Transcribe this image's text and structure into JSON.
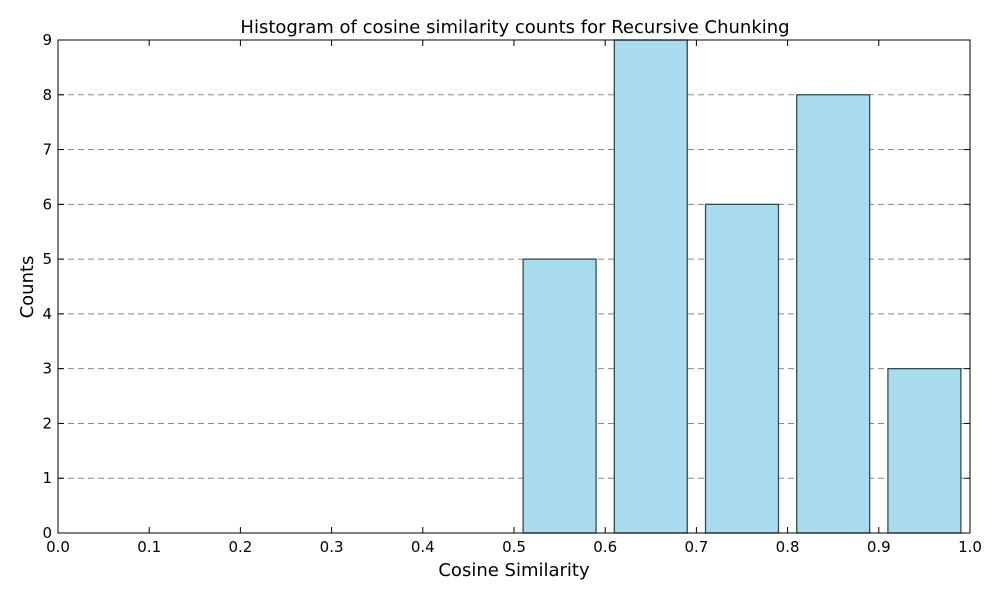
{
  "chart_data": {
    "type": "bar",
    "title": "Histogram of cosine similarity counts for Recursive Chunking",
    "xlabel": "Cosine Similarity",
    "ylabel": "Counts",
    "xlim": [
      0.0,
      1.0
    ],
    "ylim": [
      0,
      9
    ],
    "xticks": [
      "0.0",
      "0.1",
      "0.2",
      "0.3",
      "0.4",
      "0.5",
      "0.6",
      "0.7",
      "0.8",
      "0.9",
      "1.0"
    ],
    "yticks": [
      "0",
      "1",
      "2",
      "3",
      "4",
      "5",
      "6",
      "7",
      "8",
      "9"
    ],
    "bins": [
      {
        "start": 0.0,
        "end": 0.1,
        "count": 0
      },
      {
        "start": 0.1,
        "end": 0.2,
        "count": 0
      },
      {
        "start": 0.2,
        "end": 0.3,
        "count": 0
      },
      {
        "start": 0.3,
        "end": 0.4,
        "count": 0
      },
      {
        "start": 0.4,
        "end": 0.5,
        "count": 0
      },
      {
        "start": 0.5,
        "end": 0.6,
        "count": 5
      },
      {
        "start": 0.6,
        "end": 0.7,
        "count": 9
      },
      {
        "start": 0.7,
        "end": 0.8,
        "count": 6
      },
      {
        "start": 0.8,
        "end": 0.9,
        "count": 8
      },
      {
        "start": 0.9,
        "end": 1.0,
        "count": 3
      }
    ],
    "grid": "y-dashed",
    "bar_color": "#a8dbee",
    "edge_color": "#2f4f4f"
  }
}
